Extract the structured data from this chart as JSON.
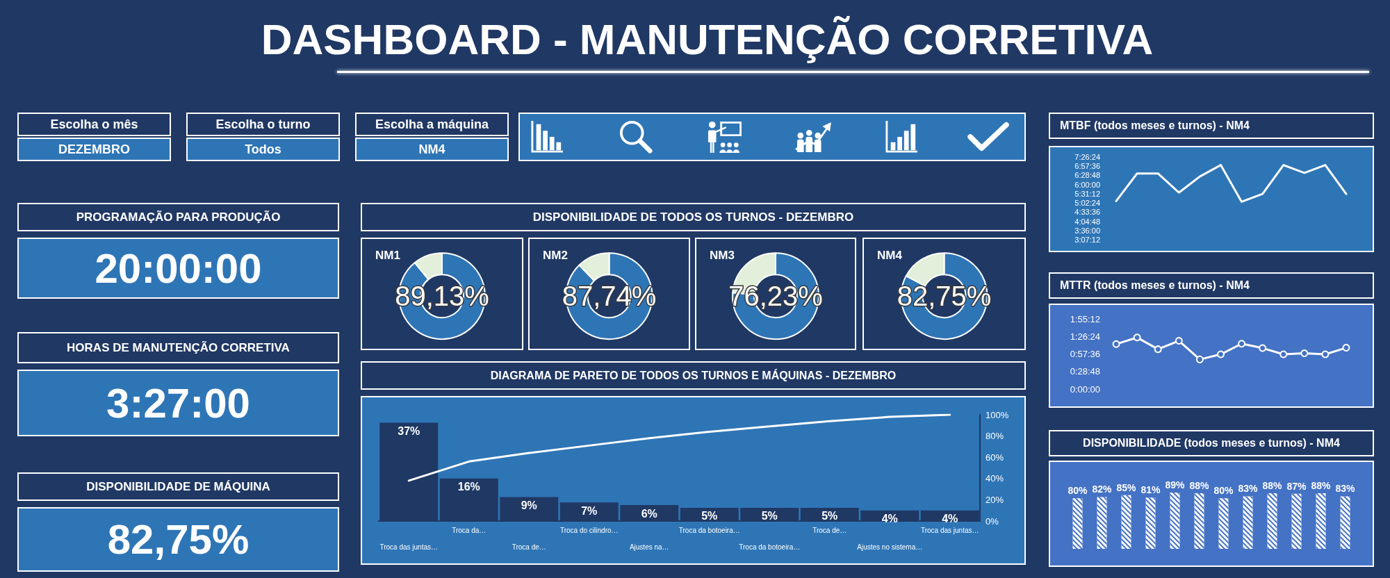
{
  "chart_data": [
    {
      "type": "other",
      "title": "DASHBOARD - MANUTENÇÃO CORRETIVA"
    },
    {
      "type": "other",
      "annotations": [
        "Escolha o mês",
        "DEZEMBRO",
        "Escolha o turno",
        "Todos",
        "Escolha a máquina",
        "NM4"
      ]
    },
    {
      "type": "line",
      "title": "MTBF (todos meses e turnos) - NM4",
      "categories": [
        null,
        null,
        null,
        null,
        null,
        null,
        null,
        null,
        null,
        null,
        null,
        null
      ],
      "values": [
        5.14,
        6.58,
        6.58,
        5.58,
        6.42,
        7.02,
        5.1,
        5.51,
        7.02,
        6.61,
        7.02,
        5.51
      ],
      "color": "#ffffff",
      "ylim": [
        3.12,
        7.44
      ],
      "yticks": [
        {
          "value": 3.12,
          "label": "3:07:12"
        },
        {
          "value": 3.6,
          "label": "3:36:00"
        },
        {
          "value": 4.08,
          "label": "4:04:48"
        },
        {
          "value": 4.56,
          "label": "4:33:36"
        },
        {
          "value": 5.04,
          "label": "5:02:24"
        },
        {
          "value": 5.52,
          "label": "5:31:12"
        },
        {
          "value": 6,
          "label": "6:00:00"
        },
        {
          "value": 6.48,
          "label": "6:28:48"
        },
        {
          "value": 6.96,
          "label": "6:57:36"
        },
        {
          "value": 7.44,
          "label": "7:26:24"
        }
      ],
      "tick_labels": "y"
    },
    {
      "type": "other",
      "title": "PROGRAMAÇÃO PARA PRODUÇÃO",
      "annotations": [
        "20:00:00"
      ]
    },
    {
      "type": "other",
      "title": "DISPONIBILIDADE DE TODOS OS TURNOS - DEZEMBRO"
    },
    {
      "type": "donut",
      "title": "NM1",
      "categories": [
        null,
        null
      ],
      "values": [
        89.13,
        10.87
      ],
      "colors": [
        "#2e75b6",
        "#e2efda"
      ],
      "value_labels": [
        "89,13%",
        null
      ]
    },
    {
      "type": "donut",
      "title": "NM2",
      "categories": [
        null,
        null
      ],
      "values": [
        87.74,
        12.26
      ],
      "colors": [
        "#2e75b6",
        "#e2efda"
      ],
      "value_labels": [
        "87,74%",
        null
      ]
    },
    {
      "type": "donut",
      "title": "NM3",
      "categories": [
        null,
        null
      ],
      "values": [
        76.23,
        23.77
      ],
      "colors": [
        "#2e75b6",
        "#e2efda"
      ],
      "value_labels": [
        "76,23%",
        null
      ]
    },
    {
      "type": "donut",
      "title": "NM4",
      "categories": [
        null,
        null
      ],
      "values": [
        82.75,
        17.25
      ],
      "colors": [
        "#2e75b6",
        "#e2efda"
      ],
      "value_labels": [
        "82,75%",
        null
      ]
    },
    {
      "type": "line",
      "title": "MTTR (todos meses e turnos) - NM4",
      "categories": [
        null,
        null,
        null,
        null,
        null,
        null,
        null,
        null,
        null,
        null,
        null,
        null
      ],
      "values": [
        1.23,
        1.41,
        1.09,
        1.32,
        0.81,
        0.95,
        1.24,
        1.12,
        0.95,
        0.98,
        0.95,
        1.13
      ],
      "color": "#ffffff",
      "marker": "circle",
      "ylim": [
        0,
        1.92
      ],
      "yticks": [
        {
          "value": 0,
          "label": "0:00:00"
        },
        {
          "value": 0.48,
          "label": "0:28:48"
        },
        {
          "value": 0.96,
          "label": "0:57:36"
        },
        {
          "value": 1.44,
          "label": "1:26:24"
        },
        {
          "value": 1.92,
          "label": "1:55:12"
        }
      ],
      "tick_labels": "y"
    },
    {
      "type": "other",
      "title": "HORAS DE MANUTENÇÃO CORRETIVA",
      "annotations": [
        "3:27:00"
      ]
    },
    {
      "type": "bar",
      "title": "DIAGRAMA DE PARETO DE TODOS OS TURNOS E MÁQUINAS - DEZEMBRO",
      "categories": [
        "Troca das juntas…",
        "Troca da…",
        "Troca de…",
        "Troca do cilindro…",
        "Ajustes na…",
        "Troca da botoeira…",
        "Troca da botoeira…",
        "Troca de…",
        "Ajustes no sistema…",
        "Troca das juntas…"
      ],
      "series": [
        {
          "type": "bar",
          "color": "#1f3864",
          "values": [
            37,
            16,
            9,
            7,
            6,
            5,
            5,
            5,
            4,
            4
          ],
          "value_labels": [
            "37%",
            "16%",
            "9%",
            "7%",
            "6%",
            "5%",
            "5%",
            "5%",
            "4%",
            "4%"
          ]
        },
        {
          "type": "line",
          "axis": "y2",
          "color": "#ffffff",
          "values": [
            38,
            56,
            64,
            71,
            78,
            84,
            89,
            94,
            98,
            100
          ]
        }
      ],
      "y2lim": [
        0,
        100
      ],
      "y2ticks": [
        {
          "value": 0,
          "label": "0%"
        },
        {
          "value": 20,
          "label": "20%"
        },
        {
          "value": 40,
          "label": "40%"
        },
        {
          "value": 60,
          "label": "60%"
        },
        {
          "value": 80,
          "label": "80%"
        },
        {
          "value": 100,
          "label": "100%"
        }
      ]
    },
    {
      "type": "bar",
      "title": "DISPONIBILIDADE (todos meses e turnos) - NM4",
      "categories": [
        null,
        null,
        null,
        null,
        null,
        null,
        null,
        null,
        null,
        null,
        null,
        null
      ],
      "values": [
        80,
        82,
        85,
        81,
        89,
        88,
        80,
        83,
        88,
        87,
        88,
        83
      ],
      "value_labels": [
        "80%",
        "82%",
        "85%",
        "81%",
        "89%",
        "88%",
        "80%",
        "83%",
        "88%",
        "87%",
        "88%",
        "83%"
      ],
      "color": "#ffffff",
      "tick_labels": false
    },
    {
      "type": "other",
      "title": "DISPONIBILIDADE DE MÁQUINA",
      "annotations": [
        "82,75%"
      ]
    }
  ]
}
